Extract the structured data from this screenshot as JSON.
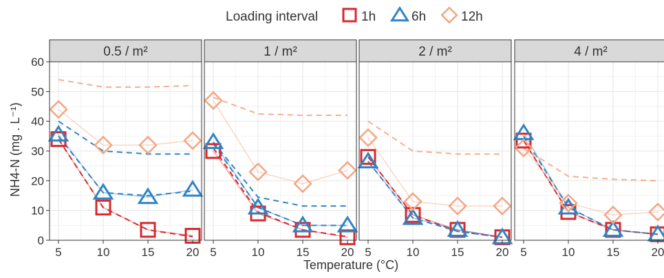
{
  "chart_data": {
    "type": "line",
    "facets": [
      "0.5 / m²",
      "1 / m²",
      "2 / m²",
      "4 / m²"
    ],
    "x": [
      5,
      10,
      15,
      20
    ],
    "xlabel": "Temperature (°C)",
    "ylabel": "NH4-N (mg . L⁻¹)",
    "ylim": [
      0,
      60
    ],
    "yticks": [
      0,
      10,
      20,
      30,
      40,
      50,
      60
    ],
    "xticks": [
      5,
      10,
      15,
      20
    ],
    "grid": true,
    "legend": {
      "title": "Loading interval",
      "position": "top",
      "entries": [
        {
          "name": "1h",
          "marker": "square",
          "color": "#d7282d"
        },
        {
          "name": "6h",
          "marker": "triangle",
          "color": "#2f84c4"
        },
        {
          "name": "12h",
          "marker": "diamond",
          "color": "#f4a582"
        }
      ]
    },
    "panels": [
      {
        "facet": "0.5 / m²",
        "series": [
          {
            "name": "1h",
            "observed": [
              34,
              11,
              3.5,
              1.5
            ],
            "fitted": [
              34,
              11,
              3.5,
              1.2
            ]
          },
          {
            "name": "6h",
            "observed": [
              35.5,
              16,
              14.5,
              17
            ],
            "fitted": [
              35,
              16,
              15,
              16.5
            ]
          },
          {
            "name": "12h",
            "observed": [
              44,
              32,
              32,
              33.5
            ],
            "fitted": [
              54,
              51.5,
              51.5,
              52
            ]
          }
        ],
        "extra_dashed": {
          "name": "6h",
          "values": [
            40,
            30,
            29,
            29
          ]
        }
      },
      {
        "facet": "1 / m²",
        "series": [
          {
            "name": "1h",
            "observed": [
              30,
              9,
              3.5,
              1
            ],
            "fitted": [
              31,
              9.5,
              3.5,
              1.2
            ]
          },
          {
            "name": "6h",
            "observed": [
              33,
              11,
              5,
              5
            ],
            "fitted": [
              32.5,
              11,
              5,
              5
            ]
          },
          {
            "name": "12h",
            "observed": [
              47,
              23,
              19,
              23.5
            ],
            "fitted": [
              48,
              42.5,
              42,
              42
            ]
          }
        ],
        "extra_dashed": {
          "name": "6h",
          "values": [
            33,
            14.5,
            11.5,
            11.5
          ]
        }
      },
      {
        "facet": "2 / m²",
        "series": [
          {
            "name": "1h",
            "observed": [
              28,
              8.5,
              3.5,
              1
            ],
            "fitted": [
              28,
              8.5,
              3,
              1
            ]
          },
          {
            "name": "6h",
            "observed": [
              26.5,
              7.5,
              3.5,
              1
            ],
            "fitted": [
              26.5,
              7.5,
              3,
              1
            ]
          },
          {
            "name": "12h",
            "observed": [
              34.5,
              13,
              11.5,
              11.5
            ],
            "fitted": [
              40,
              30,
              29,
              29
            ]
          }
        ],
        "extra_dashed": null
      },
      {
        "facet": "4 / m²",
        "series": [
          {
            "name": "1h",
            "observed": [
              33.5,
              9.5,
              3.5,
              2
            ],
            "fitted": [
              33.5,
              9.5,
              3.5,
              2
            ]
          },
          {
            "name": "6h",
            "observed": [
              36,
              11,
              3.5,
              2
            ],
            "fitted": [
              35,
              11,
              3.5,
              2
            ]
          },
          {
            "name": "12h",
            "observed": [
              31,
              12.5,
              8.5,
              9.5
            ],
            "fitted": [
              31,
              21.5,
              20.5,
              20
            ]
          }
        ],
        "extra_dashed": null
      }
    ]
  }
}
